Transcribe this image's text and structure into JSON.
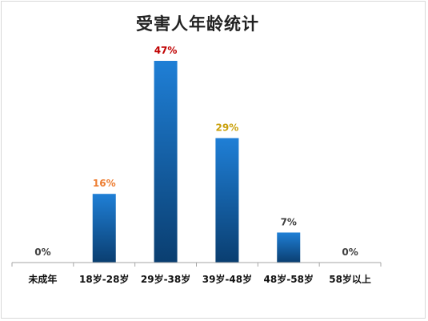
{
  "chart_data": {
    "type": "bar",
    "title": "受害人年龄统计",
    "categories": [
      "未成年",
      "18岁-28岁",
      "29岁-38岁",
      "39岁-48岁",
      "48岁-58岁",
      "58岁以上"
    ],
    "values": [
      0,
      16,
      47,
      29,
      7,
      0
    ],
    "value_labels": [
      "0%",
      "16%",
      "47%",
      "29%",
      "7%",
      "0%"
    ],
    "label_colors": [
      "#404040",
      "#ED7D31",
      "#C00000",
      "#C9A00A",
      "#404040",
      "#404040"
    ],
    "unit": "%",
    "ylim": [
      0,
      47
    ],
    "grid": false,
    "legend": "none",
    "bar_color_top": "#1F7FD6",
    "bar_color_bottom": "#0A3E70"
  }
}
